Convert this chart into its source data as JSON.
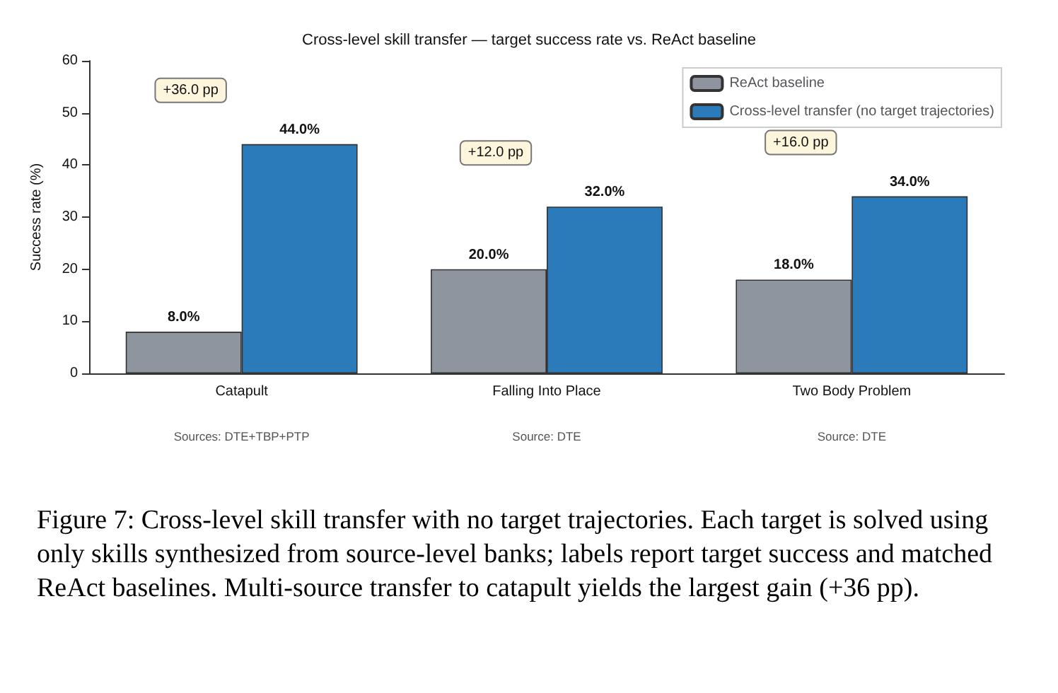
{
  "chart_data": {
    "type": "bar",
    "title": "Cross-level skill transfer — target success rate vs. ReAct baseline",
    "ylabel": "Success rate (%)",
    "categories": [
      "Catapult",
      "Falling Into Place",
      "Two Body Problem"
    ],
    "series": [
      {
        "name": "ReAct baseline",
        "color": "#8f959e",
        "values": [
          8,
          20,
          18
        ],
        "value_labels": [
          "8.0%",
          "20.0%",
          "18.0%"
        ]
      },
      {
        "name": "Cross-level transfer (no target trajectories)",
        "color": "#2b7bba",
        "values": [
          44,
          32,
          34
        ],
        "value_labels": [
          "44.0%",
          "32.0%",
          "34.0%"
        ]
      }
    ],
    "ylim": [
      0,
      60
    ],
    "yticks": [
      0,
      10,
      20,
      30,
      40,
      50,
      60
    ],
    "grid": false,
    "legend": "top right",
    "annotations": [
      "+36.0 pp",
      "+12.0 pp",
      "+16.0 pp",
      "Sources: DTE+TBP+PTP",
      "Source: DTE",
      "Source: DTE",
      "Figure 7: Cross-level skill transfer with no target trajectories. Each target is solved using only skills synthesized from source-level banks; labels report target success and matched ReAct baselines. Multi-source transfer to catapult yields the largest gain (+36 pp)."
    ]
  }
}
